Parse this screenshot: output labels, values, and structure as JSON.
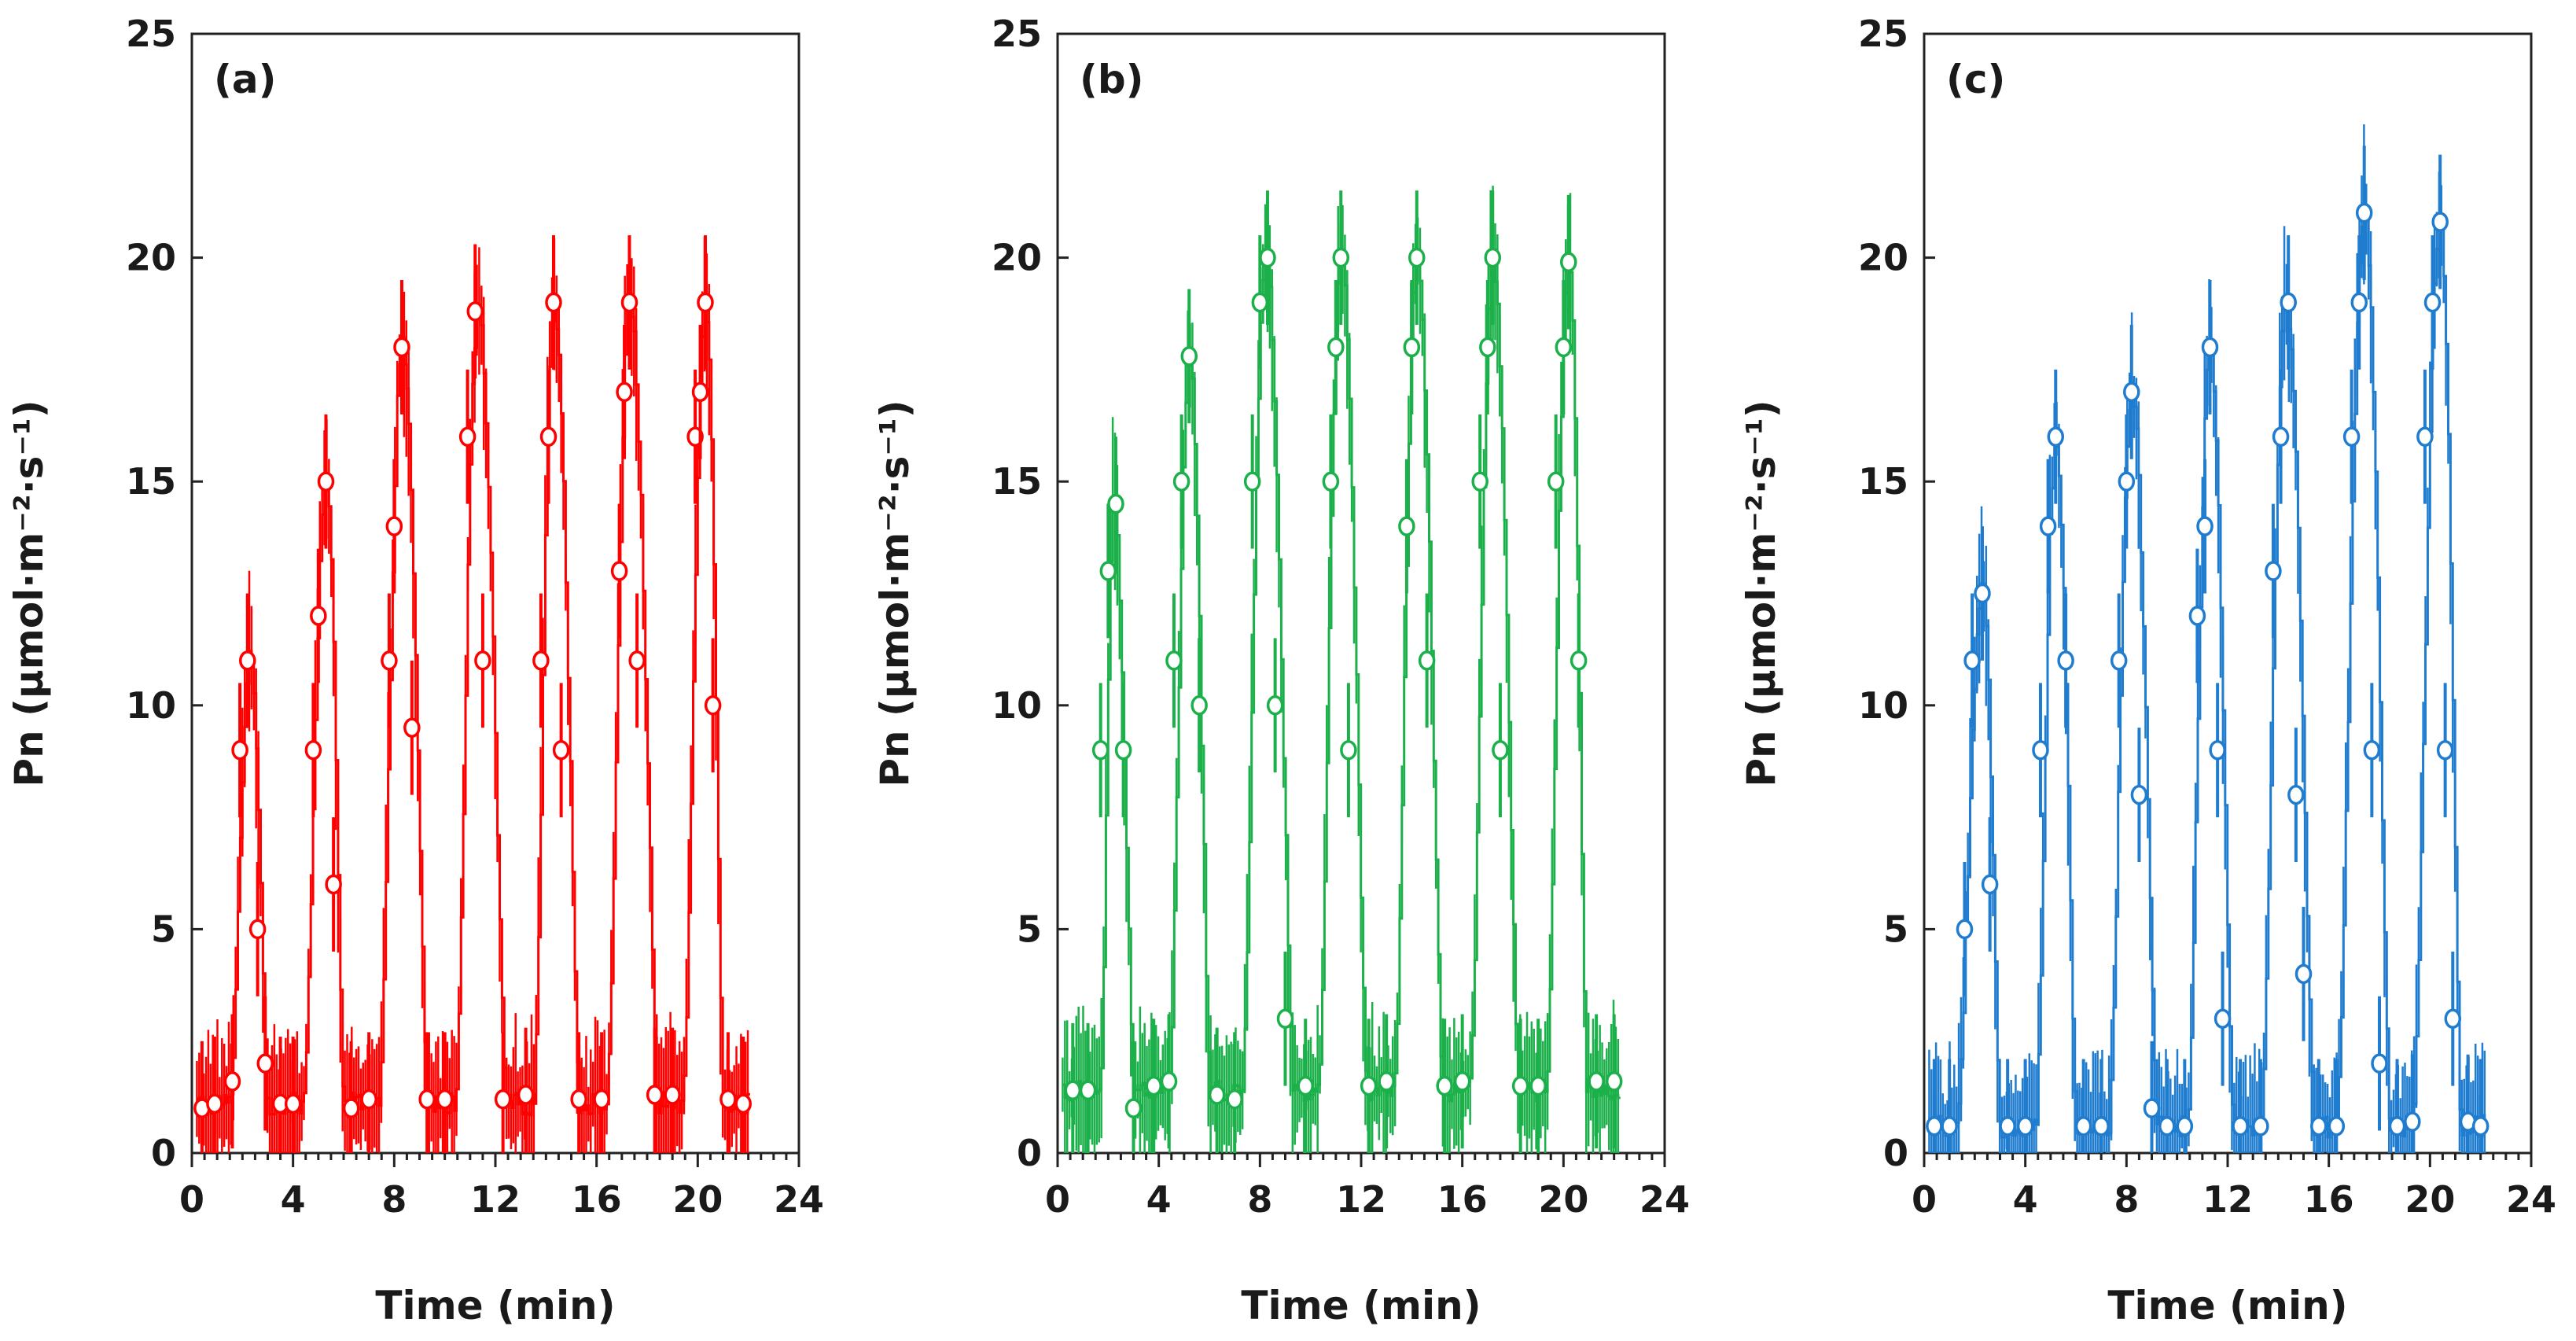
{
  "chart_data": [
    {
      "type": "line",
      "panel_label": "(a)",
      "color": "#ff0000",
      "xlabel": "Time (min)",
      "ylabel": "Pn (μmol·m⁻²·s⁻¹)",
      "xlim": [
        0,
        24
      ],
      "ylim": [
        0,
        25
      ],
      "xticks": [
        0,
        4,
        8,
        12,
        16,
        20,
        24
      ],
      "yticks": [
        0,
        5,
        10,
        15,
        20,
        25
      ],
      "series": [
        {
          "name": "Pn",
          "peaks": [
            {
              "start": 1.5,
              "peak_t": 2.3,
              "peak_v": 11.0,
              "end": 3.0
            },
            {
              "start": 4.4,
              "peak_t": 5.3,
              "peak_v": 15.0,
              "end": 6.0
            },
            {
              "start": 7.4,
              "peak_t": 8.3,
              "peak_v": 18.0,
              "end": 9.3
            },
            {
              "start": 10.4,
              "peak_t": 11.3,
              "peak_v": 18.8,
              "end": 12.4
            },
            {
              "start": 13.5,
              "peak_t": 14.3,
              "peak_v": 19.0,
              "end": 15.3
            },
            {
              "start": 16.4,
              "peak_t": 17.3,
              "peak_v": 19.0,
              "end": 18.4
            },
            {
              "start": 19.4,
              "peak_t": 20.3,
              "peak_v": 19.0,
              "end": 21.0
            }
          ],
          "baseline": 1.1,
          "t_start": 0.2,
          "t_end": 22.0,
          "points": [
            {
              "x": 0.4,
              "y": 1.0
            },
            {
              "x": 0.9,
              "y": 1.1
            },
            {
              "x": 1.6,
              "y": 1.6
            },
            {
              "x": 1.9,
              "y": 9.0
            },
            {
              "x": 2.2,
              "y": 11.0
            },
            {
              "x": 2.6,
              "y": 5.0
            },
            {
              "x": 2.9,
              "y": 2.0
            },
            {
              "x": 3.5,
              "y": 1.1
            },
            {
              "x": 4.0,
              "y": 1.1
            },
            {
              "x": 4.8,
              "y": 9.0
            },
            {
              "x": 5.0,
              "y": 12.0
            },
            {
              "x": 5.3,
              "y": 15.0
            },
            {
              "x": 5.6,
              "y": 6.0
            },
            {
              "x": 6.3,
              "y": 1.0
            },
            {
              "x": 7.0,
              "y": 1.2
            },
            {
              "x": 7.8,
              "y": 11.0
            },
            {
              "x": 8.0,
              "y": 14.0
            },
            {
              "x": 8.3,
              "y": 18.0
            },
            {
              "x": 8.7,
              "y": 9.5
            },
            {
              "x": 9.3,
              "y": 1.2
            },
            {
              "x": 10.0,
              "y": 1.2
            },
            {
              "x": 10.9,
              "y": 16.0
            },
            {
              "x": 11.2,
              "y": 18.8
            },
            {
              "x": 11.5,
              "y": 11.0
            },
            {
              "x": 12.3,
              "y": 1.2
            },
            {
              "x": 13.2,
              "y": 1.3
            },
            {
              "x": 13.8,
              "y": 11.0
            },
            {
              "x": 14.1,
              "y": 16.0
            },
            {
              "x": 14.3,
              "y": 19.0
            },
            {
              "x": 14.6,
              "y": 9.0
            },
            {
              "x": 15.3,
              "y": 1.2
            },
            {
              "x": 16.2,
              "y": 1.2
            },
            {
              "x": 16.9,
              "y": 13.0
            },
            {
              "x": 17.1,
              "y": 17.0
            },
            {
              "x": 17.3,
              "y": 19.0
            },
            {
              "x": 17.6,
              "y": 11.0
            },
            {
              "x": 18.3,
              "y": 1.3
            },
            {
              "x": 19.0,
              "y": 1.3
            },
            {
              "x": 19.9,
              "y": 16.0
            },
            {
              "x": 20.1,
              "y": 17.0
            },
            {
              "x": 20.3,
              "y": 19.0
            },
            {
              "x": 20.6,
              "y": 10.0
            },
            {
              "x": 21.2,
              "y": 1.2
            },
            {
              "x": 21.8,
              "y": 1.1
            }
          ]
        }
      ]
    },
    {
      "type": "line",
      "panel_label": "(b)",
      "color": "#1bb04a",
      "xlabel": "Time (min)",
      "ylabel": "Pn (μmol·m⁻²·s⁻¹)",
      "xlim": [
        0,
        24
      ],
      "ylim": [
        0,
        25
      ],
      "xticks": [
        0,
        4,
        8,
        12,
        16,
        20,
        24
      ],
      "yticks": [
        0,
        5,
        10,
        15,
        20,
        25
      ],
      "series": [
        {
          "name": "Pn",
          "peaks": [
            {
              "start": 1.7,
              "peak_t": 2.2,
              "peak_v": 14.5,
              "end": 3.0
            },
            {
              "start": 4.4,
              "peak_t": 5.2,
              "peak_v": 17.8,
              "end": 6.0
            },
            {
              "start": 7.3,
              "peak_t": 8.2,
              "peak_v": 20.0,
              "end": 9.3
            },
            {
              "start": 10.3,
              "peak_t": 11.2,
              "peak_v": 20.0,
              "end": 12.2
            },
            {
              "start": 13.3,
              "peak_t": 14.2,
              "peak_v": 20.0,
              "end": 15.2
            },
            {
              "start": 16.3,
              "peak_t": 17.2,
              "peak_v": 20.0,
              "end": 18.2
            },
            {
              "start": 19.3,
              "peak_t": 20.2,
              "peak_v": 20.0,
              "end": 20.9
            }
          ],
          "baseline": 1.4,
          "t_start": 0.2,
          "t_end": 22.2,
          "points": [
            {
              "x": 0.6,
              "y": 1.4
            },
            {
              "x": 1.2,
              "y": 1.4
            },
            {
              "x": 1.7,
              "y": 9.0
            },
            {
              "x": 2.0,
              "y": 13.0
            },
            {
              "x": 2.3,
              "y": 14.5
            },
            {
              "x": 2.6,
              "y": 9.0
            },
            {
              "x": 3.0,
              "y": 1.0
            },
            {
              "x": 3.8,
              "y": 1.5
            },
            {
              "x": 4.4,
              "y": 1.6
            },
            {
              "x": 4.6,
              "y": 11.0
            },
            {
              "x": 4.9,
              "y": 15.0
            },
            {
              "x": 5.2,
              "y": 17.8
            },
            {
              "x": 5.6,
              "y": 10.0
            },
            {
              "x": 6.3,
              "y": 1.3
            },
            {
              "x": 7.0,
              "y": 1.2
            },
            {
              "x": 7.7,
              "y": 15.0
            },
            {
              "x": 8.0,
              "y": 19.0
            },
            {
              "x": 8.3,
              "y": 20.0
            },
            {
              "x": 8.6,
              "y": 10.0
            },
            {
              "x": 9.0,
              "y": 3.0
            },
            {
              "x": 9.8,
              "y": 1.5
            },
            {
              "x": 10.8,
              "y": 15.0
            },
            {
              "x": 11.0,
              "y": 18.0
            },
            {
              "x": 11.2,
              "y": 20.0
            },
            {
              "x": 11.5,
              "y": 9.0
            },
            {
              "x": 12.3,
              "y": 1.5
            },
            {
              "x": 13.0,
              "y": 1.6
            },
            {
              "x": 13.8,
              "y": 14.0
            },
            {
              "x": 14.0,
              "y": 18.0
            },
            {
              "x": 14.2,
              "y": 20.0
            },
            {
              "x": 14.6,
              "y": 11.0
            },
            {
              "x": 15.3,
              "y": 1.5
            },
            {
              "x": 16.0,
              "y": 1.6
            },
            {
              "x": 16.7,
              "y": 15.0
            },
            {
              "x": 17.0,
              "y": 18.0
            },
            {
              "x": 17.2,
              "y": 20.0
            },
            {
              "x": 17.5,
              "y": 9.0
            },
            {
              "x": 18.3,
              "y": 1.5
            },
            {
              "x": 19.0,
              "y": 1.5
            },
            {
              "x": 19.7,
              "y": 15.0
            },
            {
              "x": 20.0,
              "y": 18.0
            },
            {
              "x": 20.2,
              "y": 19.9
            },
            {
              "x": 20.6,
              "y": 11.0
            },
            {
              "x": 21.3,
              "y": 1.6
            },
            {
              "x": 22.0,
              "y": 1.6
            }
          ]
        }
      ]
    },
    {
      "type": "line",
      "panel_label": "(c)",
      "color": "#1f7ccf",
      "xlabel": "Time (min)",
      "ylabel": "Pn (μmol·m⁻²·s⁻¹)",
      "xlim": [
        0,
        24
      ],
      "ylim": [
        0,
        25
      ],
      "xticks": [
        0,
        4,
        8,
        12,
        16,
        20,
        24
      ],
      "yticks": [
        0,
        5,
        10,
        15,
        20,
        25
      ],
      "series": [
        {
          "name": "Pn",
          "peaks": [
            {
              "start": 1.3,
              "peak_t": 2.3,
              "peak_v": 12.5,
              "end": 3.0
            },
            {
              "start": 4.4,
              "peak_t": 5.2,
              "peak_v": 16.0,
              "end": 6.0
            },
            {
              "start": 7.3,
              "peak_t": 8.2,
              "peak_v": 17.0,
              "end": 9.2
            },
            {
              "start": 10.4,
              "peak_t": 11.3,
              "peak_v": 18.0,
              "end": 12.2
            },
            {
              "start": 13.3,
              "peak_t": 14.3,
              "peak_v": 19.0,
              "end": 15.4
            },
            {
              "start": 16.3,
              "peak_t": 17.4,
              "peak_v": 21.0,
              "end": 18.4
            },
            {
              "start": 19.3,
              "peak_t": 20.4,
              "peak_v": 20.8,
              "end": 21.2
            }
          ],
          "baseline": 0.6,
          "t_start": 0.2,
          "t_end": 22.2,
          "points": [
            {
              "x": 0.4,
              "y": 0.6
            },
            {
              "x": 1.0,
              "y": 0.6
            },
            {
              "x": 1.6,
              "y": 5.0
            },
            {
              "x": 1.9,
              "y": 11.0
            },
            {
              "x": 2.3,
              "y": 12.5
            },
            {
              "x": 2.6,
              "y": 6.0
            },
            {
              "x": 3.3,
              "y": 0.6
            },
            {
              "x": 4.0,
              "y": 0.6
            },
            {
              "x": 4.6,
              "y": 9.0
            },
            {
              "x": 4.9,
              "y": 14.0
            },
            {
              "x": 5.2,
              "y": 16.0
            },
            {
              "x": 5.6,
              "y": 11.0
            },
            {
              "x": 6.3,
              "y": 0.6
            },
            {
              "x": 7.0,
              "y": 0.6
            },
            {
              "x": 7.7,
              "y": 11.0
            },
            {
              "x": 8.0,
              "y": 15.0
            },
            {
              "x": 8.2,
              "y": 17.0
            },
            {
              "x": 8.5,
              "y": 8.0
            },
            {
              "x": 9.0,
              "y": 1.0
            },
            {
              "x": 9.6,
              "y": 0.6
            },
            {
              "x": 10.3,
              "y": 0.6
            },
            {
              "x": 10.8,
              "y": 12.0
            },
            {
              "x": 11.1,
              "y": 14.0
            },
            {
              "x": 11.3,
              "y": 18.0
            },
            {
              "x": 11.6,
              "y": 9.0
            },
            {
              "x": 11.8,
              "y": 3.0
            },
            {
              "x": 12.5,
              "y": 0.6
            },
            {
              "x": 13.3,
              "y": 0.6
            },
            {
              "x": 13.8,
              "y": 13.0
            },
            {
              "x": 14.1,
              "y": 16.0
            },
            {
              "x": 14.4,
              "y": 19.0
            },
            {
              "x": 14.7,
              "y": 8.0
            },
            {
              "x": 15.0,
              "y": 4.0
            },
            {
              "x": 15.6,
              "y": 0.6
            },
            {
              "x": 16.3,
              "y": 0.6
            },
            {
              "x": 16.9,
              "y": 16.0
            },
            {
              "x": 17.2,
              "y": 19.0
            },
            {
              "x": 17.4,
              "y": 21.0
            },
            {
              "x": 17.7,
              "y": 9.0
            },
            {
              "x": 18.0,
              "y": 2.0
            },
            {
              "x": 18.7,
              "y": 0.6
            },
            {
              "x": 19.3,
              "y": 0.7
            },
            {
              "x": 19.8,
              "y": 16.0
            },
            {
              "x": 20.1,
              "y": 19.0
            },
            {
              "x": 20.4,
              "y": 20.8
            },
            {
              "x": 20.6,
              "y": 9.0
            },
            {
              "x": 20.9,
              "y": 3.0
            },
            {
              "x": 21.5,
              "y": 0.7
            },
            {
              "x": 22.0,
              "y": 0.6
            }
          ]
        }
      ]
    }
  ]
}
